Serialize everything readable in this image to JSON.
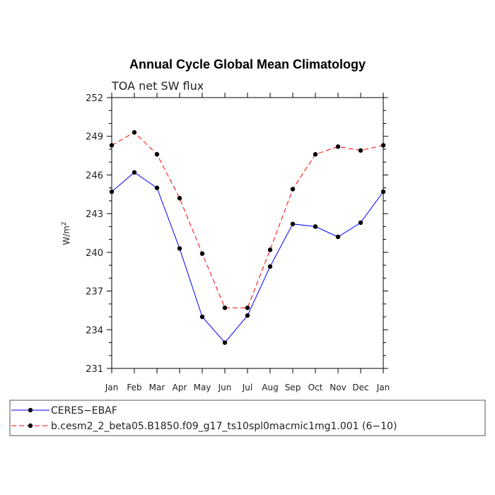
{
  "chart_data": {
    "type": "line",
    "title": "Annual Cycle Global Mean Climatology",
    "subtitle": "TOA net SW flux",
    "ylabel": "W/m",
    "ylabel_superscript": "2",
    "ylim": [
      231,
      252
    ],
    "yticks": [
      231,
      234,
      237,
      240,
      243,
      246,
      249,
      252
    ],
    "x": [
      "Jan",
      "Feb",
      "Mar",
      "Apr",
      "May",
      "Jun",
      "Jul",
      "Aug",
      "Sep",
      "Oct",
      "Nov",
      "Dec",
      "Jan"
    ],
    "series": [
      {
        "name": "CERES−EBAF",
        "color": "#0000ff",
        "dash": "solid",
        "values": [
          244.7,
          246.2,
          245.0,
          240.3,
          235.0,
          233.0,
          235.1,
          238.9,
          242.2,
          242.0,
          241.2,
          242.3,
          244.7
        ]
      },
      {
        "name": "b.cesm2_2_beta05.B1850.f09_g17_ts10spl0macmic1mg1.001 (6−10)",
        "color": "#ff0000",
        "dash": "dashed",
        "values": [
          248.3,
          249.3,
          247.6,
          244.2,
          239.9,
          235.7,
          235.7,
          240.2,
          244.9,
          247.6,
          248.2,
          247.9,
          248.3
        ]
      }
    ],
    "legend_position": "bottom"
  }
}
